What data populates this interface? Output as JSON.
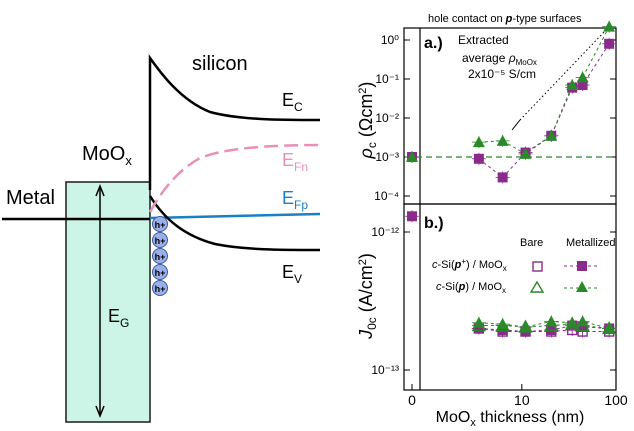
{
  "band_diagram": {
    "labels": {
      "metal": "Metal",
      "moox": "MoOx",
      "silicon": "silicon",
      "ec": "EC",
      "efn": "EFn",
      "efp": "EFp",
      "ev": "EV",
      "eg": "EG",
      "hole": "h+"
    },
    "hole_count": 5,
    "colors": {
      "oxide_fill": "#ccf5e8",
      "efn": "#e890b8",
      "efp": "#1a7fc4",
      "hole": "#9ab0e8",
      "band": "#000000"
    }
  },
  "chart_data": [
    {
      "type": "scatter",
      "panel_label": "a.)",
      "title": "hole contact on p-type surfaces",
      "ylabel": "ρc (Ωcm²)",
      "y_scale": "log",
      "ylim": [
        0.0001,
        3
      ],
      "y_ticks": [
        "10⁻⁴",
        "10⁻³",
        "10⁻²",
        "10⁻¹",
        "10⁰"
      ],
      "annotation": [
        "Extracted",
        "average ρMoOx",
        "2x10⁻⁵ S/cm"
      ],
      "reference_line_value": 0.001,
      "series": [
        {
          "name": "Metallized c-Si(p+)/MoOx",
          "marker": "square",
          "color": "#8a2a8a",
          "points": [
            [
              0,
              0.001
            ],
            [
              3,
              0.0009
            ],
            [
              6,
              0.0003
            ],
            [
              11,
              0.0013
            ],
            [
              21,
              0.0035
            ],
            [
              35,
              0.06
            ],
            [
              45,
              0.07
            ],
            [
              85,
              0.8
            ]
          ]
        },
        {
          "name": "Metallized c-Si(p)/MoOx",
          "marker": "triangle",
          "color": "#2a8a2a",
          "points": [
            [
              0,
              0.001
            ],
            [
              3,
              0.0024
            ],
            [
              6,
              0.0026
            ],
            [
              11,
              0.0012
            ],
            [
              21,
              0.0035
            ],
            [
              35,
              0.07
            ],
            [
              45,
              0.11
            ],
            [
              85,
              2.2
            ]
          ]
        }
      ]
    },
    {
      "type": "scatter",
      "panel_label": "b.)",
      "ylabel": "J0c (A/cm²)",
      "xlabel": "MoOx thickness (nm)",
      "y_scale": "log",
      "x_scale": "symlog",
      "x_ticks": [
        "0",
        "10",
        "100"
      ],
      "y_ticks": [
        "10⁻¹²",
        "10⁻¹³"
      ],
      "legend": {
        "col_bare": "Bare",
        "col_metallized": "Metallized",
        "row1": "c-Si(p⁺) / MoOx",
        "row2": "c-Si(p) / MoOx"
      },
      "series": [
        {
          "name": "Bare c-Si(p+)/MoOx",
          "marker": "open-square",
          "color": "#8a2a8a",
          "points": [
            [
              3,
              2e-13
            ],
            [
              6,
              1.9e-13
            ],
            [
              11,
              1.9e-13
            ],
            [
              21,
              1.9e-13
            ],
            [
              35,
              1.95e-13
            ],
            [
              45,
              1.9e-13
            ],
            [
              85,
              1.9e-13
            ]
          ]
        },
        {
          "name": "Metallized c-Si(p+)/MoOx",
          "marker": "square",
          "color": "#8a2a8a",
          "points": [
            [
              0,
              1.3e-12
            ],
            [
              3,
              2e-13
            ],
            [
              6,
              1.95e-13
            ],
            [
              11,
              1.9e-13
            ],
            [
              21,
              1.95e-13
            ],
            [
              35,
              2.1e-13
            ],
            [
              45,
              2.05e-13
            ],
            [
              85,
              2e-13
            ]
          ]
        },
        {
          "name": "Bare c-Si(p)/MoOx",
          "marker": "open-triangle",
          "color": "#2a8a2a",
          "points": [
            [
              3,
              2.1e-13
            ],
            [
              6,
              2.1e-13
            ],
            [
              11,
              2.05e-13
            ],
            [
              21,
              2.1e-13
            ],
            [
              35,
              2.15e-13
            ],
            [
              45,
              2.1e-13
            ],
            [
              85,
              2e-13
            ]
          ]
        },
        {
          "name": "Metallized c-Si(p)/MoOx",
          "marker": "triangle",
          "color": "#2a8a2a",
          "points": [
            [
              3,
              2.2e-13
            ],
            [
              6,
              2.15e-13
            ],
            [
              11,
              2.05e-13
            ],
            [
              21,
              2.25e-13
            ],
            [
              35,
              2.2e-13
            ],
            [
              45,
              2.25e-13
            ],
            [
              85,
              2e-13
            ]
          ]
        }
      ]
    }
  ]
}
